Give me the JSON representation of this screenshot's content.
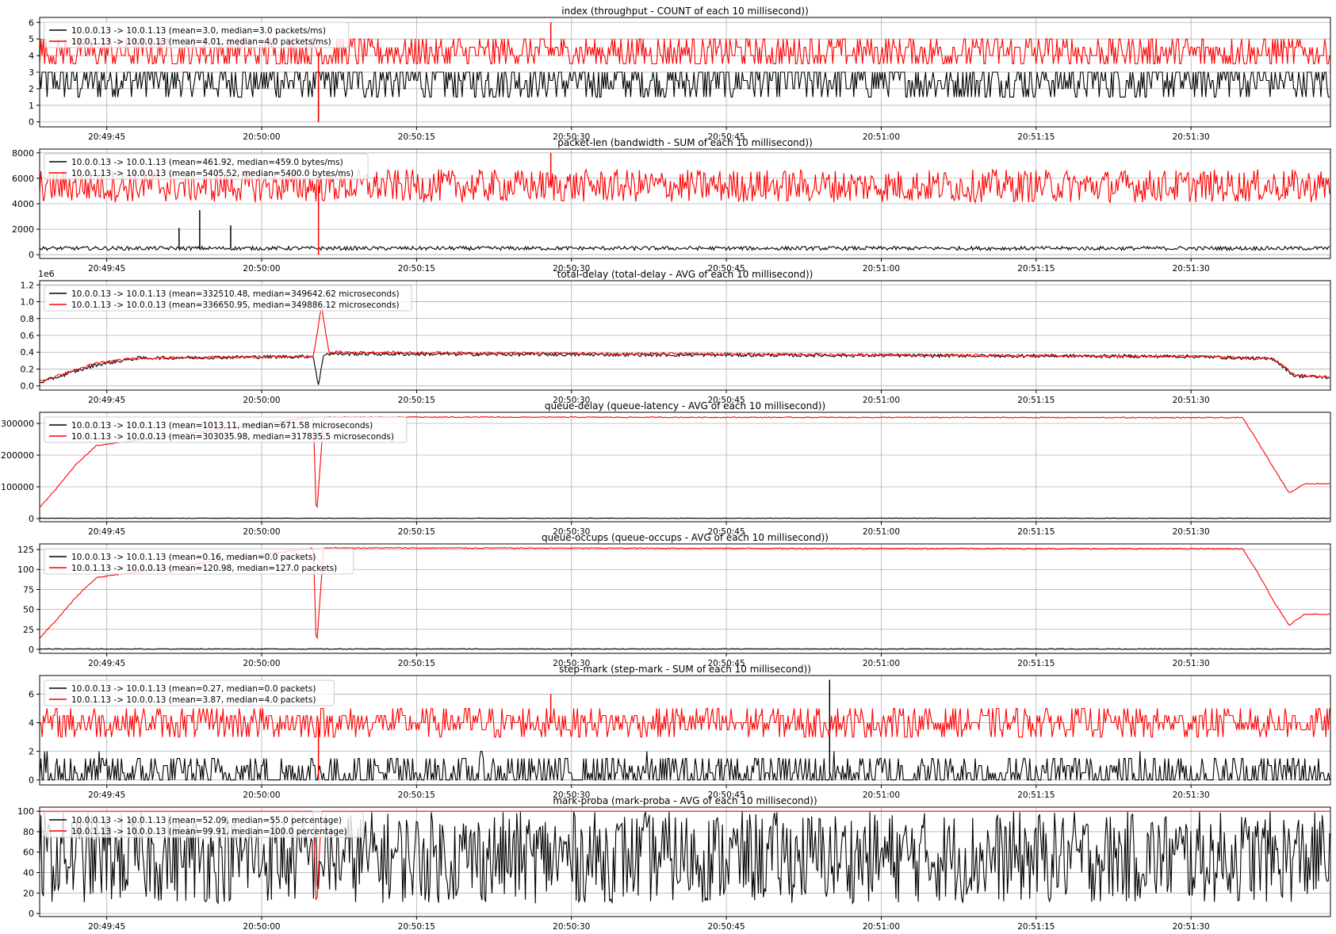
{
  "figure": {
    "legend_labels": [
      "10.0.0.13 -> 10.0.1.13",
      "10.0.1.13 -> 10.0.0.13"
    ],
    "series_colors": [
      "#000000",
      "#ff0000"
    ],
    "grid": true,
    "legend_location": "upper-left",
    "x_axis": {
      "type": "time",
      "range": [
        "20:49:38.5",
        "20:51:43.5"
      ],
      "ticks": [
        {
          "t": "20:49:45",
          "label": "20:49:45"
        },
        {
          "t": "20:50:00",
          "label": "20:50:00"
        },
        {
          "t": "20:50:15",
          "label": "20:50:15"
        },
        {
          "t": "20:50:30",
          "label": "20:50:30"
        },
        {
          "t": "20:50:45",
          "label": "20:50:45"
        },
        {
          "t": "20:51:00",
          "label": "20:51:00"
        },
        {
          "t": "20:51:15",
          "label": "20:51:15"
        },
        {
          "t": "20:51:30",
          "label": "20:51:30"
        }
      ]
    }
  },
  "chart_data": [
    {
      "type": "line",
      "title": "index (throughput - COUNT of each 10 millisecond))",
      "ylim": [
        -0.3,
        6.3
      ],
      "yticks": [
        0,
        1,
        2,
        3,
        4,
        5,
        6
      ],
      "yticklabels": [
        "0",
        "1",
        "2",
        "3",
        "4",
        "5",
        "6"
      ],
      "offset_text": "",
      "series": [
        {
          "legend": "10.0.0.13 -> 10.0.1.13 (mean=3.0, median=3.0 packets/ms)",
          "color": "#000000",
          "style": "noisy",
          "base": 2.5,
          "noise": 1.2,
          "min": 0,
          "max": 3,
          "spikes": [
            {
              "x": "20:50:05.5",
              "y": 0
            }
          ]
        },
        {
          "legend": "10.0.1.13 -> 10.0.0.13 (mean=4.01, median=4.0 packets/ms)",
          "color": "#ff0000",
          "style": "noisy",
          "base": 4.2,
          "noise": 0.9,
          "min": 3,
          "max": 5,
          "spikes": [
            {
              "x": "20:50:28",
              "y": 6
            },
            {
              "x": "20:50:05.5",
              "y": 0
            }
          ]
        }
      ]
    },
    {
      "type": "line",
      "title": "packet-len (bandwidth - SUM of each 10 millisecond))",
      "ylim": [
        -300,
        8300
      ],
      "yticks": [
        0,
        2000,
        4000,
        6000,
        8000
      ],
      "yticklabels": [
        "0",
        "2000",
        "4000",
        "6000",
        "8000"
      ],
      "offset_text": "",
      "series": [
        {
          "legend": "10.0.0.13 -> 10.0.1.13 (mean=461.92, median=459.0 bytes/ms)",
          "color": "#000000",
          "style": "noisy",
          "base": 500,
          "noise": 150,
          "min": 0,
          "max": 3500,
          "spikes": [
            {
              "x": "20:49:54",
              "y": 3500
            },
            {
              "x": "20:49:52",
              "y": 2100
            },
            {
              "x": "20:49:57",
              "y": 2300
            }
          ]
        },
        {
          "legend": "10.0.1.13 -> 10.0.0.13 (mean=5405.52, median=5400.0 bytes/ms)",
          "color": "#ff0000",
          "style": "noisy",
          "base": 5400,
          "noise": 1300,
          "min": 4000,
          "max": 6800,
          "spikes": [
            {
              "x": "20:50:28",
              "y": 8000
            },
            {
              "x": "20:50:05.5",
              "y": 0
            }
          ]
        }
      ]
    },
    {
      "type": "line",
      "title": "total-delay (total-delay - AVG of each 10 millisecond))",
      "ylim": [
        -0.05,
        1.25
      ],
      "yticks": [
        0.0,
        0.2,
        0.4,
        0.6,
        0.8,
        1.0,
        1.2
      ],
      "yticklabels": [
        "0.0",
        "0.2",
        "0.4",
        "0.6",
        "0.8",
        "1.0",
        "1.2"
      ],
      "offset_text": "1e6",
      "series": [
        {
          "legend": "10.0.0.13 -> 10.0.1.13 (mean=332510.48, median=349642.62 microseconds)",
          "color": "#000000",
          "style": "curve",
          "points": [
            [
              "20:49:38.5",
              0.04
            ],
            [
              "20:49:44",
              0.25
            ],
            [
              "20:49:48",
              0.33
            ],
            [
              "20:50:05",
              0.35
            ],
            [
              "20:50:05.5",
              0.0
            ],
            [
              "20:50:06",
              0.38
            ],
            [
              "20:50:08",
              0.38
            ],
            [
              "20:51:30",
              0.35
            ],
            [
              "20:51:38",
              0.32
            ],
            [
              "20:51:40",
              0.12
            ],
            [
              "20:51:43.5",
              0.1
            ]
          ],
          "noise": 0.02
        },
        {
          "legend": "10.0.1.13 -> 10.0.0.13 (mean=336650.95, median=349886.12 microseconds)",
          "color": "#ff0000",
          "style": "curve",
          "points": [
            [
              "20:49:38.5",
              0.05
            ],
            [
              "20:49:44",
              0.27
            ],
            [
              "20:49:48",
              0.33
            ],
            [
              "20:50:05",
              0.35
            ],
            [
              "20:50:05.8",
              0.95
            ],
            [
              "20:50:06.5",
              0.4
            ],
            [
              "20:51:30",
              0.35
            ],
            [
              "20:51:38",
              0.32
            ],
            [
              "20:51:40",
              0.13
            ],
            [
              "20:51:43.5",
              0.1
            ]
          ],
          "noise": 0.015
        }
      ]
    },
    {
      "type": "line",
      "title": "queue-delay (queue-latency - AVG of each 10 millisecond))",
      "ylim": [
        -10000,
        335000
      ],
      "yticks": [
        0,
        100000,
        200000,
        300000
      ],
      "yticklabels": [
        "0",
        "100000",
        "200000",
        "300000"
      ],
      "offset_text": "",
      "series": [
        {
          "legend": "10.0.0.13 -> 10.0.1.13 (mean=1013.11, median=671.58 microseconds)",
          "color": "#000000",
          "style": "curve",
          "points": [
            [
              "20:49:38.5",
              1000
            ],
            [
              "20:51:43.5",
              1000
            ]
          ],
          "noise": 800
        },
        {
          "legend": "10.0.1.13 -> 10.0.0.13 (mean=303035.98, median=317835.5 microseconds)",
          "color": "#ff0000",
          "style": "curve",
          "points": [
            [
              "20:49:38.5",
              35000
            ],
            [
              "20:49:40",
              90000
            ],
            [
              "20:49:42",
              170000
            ],
            [
              "20:49:44",
              230000
            ],
            [
              "20:50:05",
              320000
            ],
            [
              "20:50:05.3",
              0
            ],
            [
              "20:50:06",
              320000
            ],
            [
              "20:51:35",
              318000
            ],
            [
              "20:51:36.5",
              240000
            ],
            [
              "20:51:38",
              160000
            ],
            [
              "20:51:39.5",
              80000
            ],
            [
              "20:51:41",
              110000
            ],
            [
              "20:51:43.5",
              110000
            ]
          ],
          "noise": 1500
        }
      ]
    },
    {
      "type": "line",
      "title": "queue-occups (queue-occups - AVG of each 10 millisecond))",
      "ylim": [
        -5,
        132
      ],
      "yticks": [
        0,
        25,
        50,
        75,
        100,
        125
      ],
      "yticklabels": [
        "0",
        "25",
        "50",
        "75",
        "100",
        "125"
      ],
      "offset_text": "",
      "series": [
        {
          "legend": "10.0.0.13 -> 10.0.1.13 (mean=0.16, median=0.0 packets)",
          "color": "#000000",
          "style": "curve",
          "points": [
            [
              "20:49:38.5",
              0.5
            ],
            [
              "20:51:43.5",
              0.5
            ]
          ],
          "noise": 0.5
        },
        {
          "legend": "10.0.1.13 -> 10.0.0.13 (mean=120.98, median=127.0 packets)",
          "color": "#ff0000",
          "style": "curve",
          "points": [
            [
              "20:49:38.5",
              14
            ],
            [
              "20:49:40",
              35
            ],
            [
              "20:49:42",
              65
            ],
            [
              "20:49:44",
              90
            ],
            [
              "20:50:05",
              127
            ],
            [
              "20:50:05.3",
              0
            ],
            [
              "20:50:06",
              127
            ],
            [
              "20:51:35",
              126
            ],
            [
              "20:51:36.5",
              95
            ],
            [
              "20:51:38",
              60
            ],
            [
              "20:51:39.5",
              30
            ],
            [
              "20:51:41",
              44
            ],
            [
              "20:51:43.5",
              44
            ]
          ],
          "noise": 0.6
        }
      ]
    },
    {
      "type": "line",
      "title": "step-mark (step-mark - SUM of each 10 millisecond))",
      "ylim": [
        -0.35,
        7.3
      ],
      "yticks": [
        0,
        2,
        4,
        6
      ],
      "yticklabels": [
        "0",
        "2",
        "4",
        "6"
      ],
      "offset_text": "",
      "series": [
        {
          "legend": "10.0.0.13 -> 10.0.1.13 (mean=0.27, median=0.0 packets)",
          "color": "#000000",
          "style": "noisy",
          "base": 0.4,
          "noise": 1.4,
          "min": 0,
          "max": 3,
          "spikes": [
            {
              "x": "20:50:55",
              "y": 7
            }
          ]
        },
        {
          "legend": "10.0.1.13 -> 10.0.0.13 (mean=3.87, median=4.0 packets)",
          "color": "#ff0000",
          "style": "noisy",
          "base": 4.0,
          "noise": 1.0,
          "min": 3,
          "max": 5,
          "spikes": [
            {
              "x": "20:50:05.5",
              "y": 0
            },
            {
              "x": "20:50:28",
              "y": 6
            }
          ]
        }
      ]
    },
    {
      "type": "line",
      "title": "mark-proba (mark-proba - AVG of each 10 millisecond))",
      "ylim": [
        -3,
        104
      ],
      "yticks": [
        0,
        20,
        40,
        60,
        80,
        100
      ],
      "yticklabels": [
        "0",
        "20",
        "40",
        "60",
        "80",
        "100"
      ],
      "offset_text": "",
      "series": [
        {
          "legend": "10.0.0.13 -> 10.0.1.13 (mean=52.09, median=55.0 percentage)",
          "color": "#000000",
          "style": "noisy",
          "base": 55,
          "noise": 45,
          "min": 0,
          "max": 100,
          "spikes": []
        },
        {
          "legend": "10.0.1.13 -> 10.0.0.13 (mean=99.91, median=100.0 percentage)",
          "color": "#ff0000",
          "style": "curve",
          "points": [
            [
              "20:49:38.5",
              100
            ],
            [
              "20:50:05",
              100
            ],
            [
              "20:50:05.3",
              0
            ],
            [
              "20:50:05.8",
              100
            ],
            [
              "20:51:43.5",
              100
            ]
          ],
          "noise": 0
        }
      ]
    }
  ]
}
